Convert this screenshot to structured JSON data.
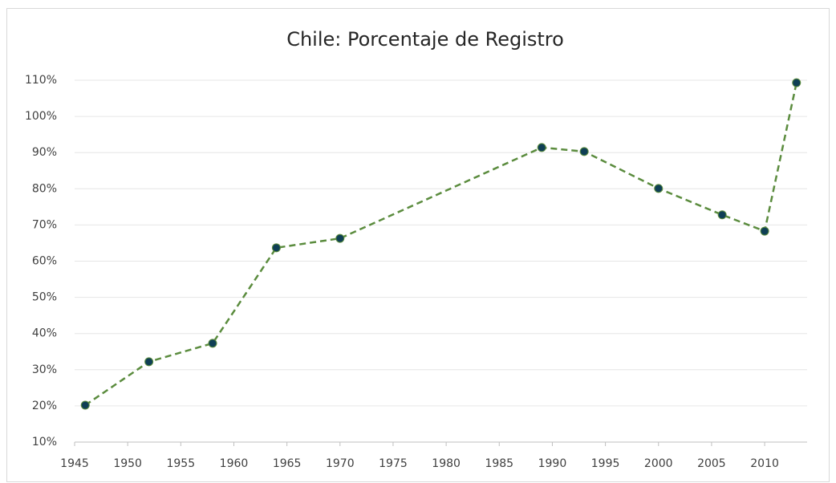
{
  "chart_data": {
    "type": "line",
    "title": "Chile: Porcentaje de Registro",
    "x": [
      1946,
      1952,
      1958,
      1964,
      1970,
      1989,
      1993,
      2000,
      2006,
      2010,
      2013
    ],
    "series": [
      {
        "color": "#5b8c3e",
        "marker_color": "#0f3f55",
        "values": [
          20.2,
          32.2,
          37.3,
          63.7,
          66.3,
          91.4,
          90.3,
          80.1,
          72.8,
          68.3,
          109.3
        ]
      }
    ],
    "xlim": [
      1945,
      2014
    ],
    "xticks": [
      1945,
      1950,
      1955,
      1960,
      1965,
      1970,
      1975,
      1980,
      1985,
      1990,
      1995,
      2000,
      2005,
      2010
    ],
    "ylim": [
      10,
      110
    ],
    "yticks": [
      {
        "value": 10,
        "label": "10%"
      },
      {
        "value": 20,
        "label": "20%"
      },
      {
        "value": 30,
        "label": "30%"
      },
      {
        "value": 40,
        "label": "40%"
      },
      {
        "value": 50,
        "label": "50%"
      },
      {
        "value": 60,
        "label": "60%"
      },
      {
        "value": 70,
        "label": "70%"
      },
      {
        "value": 80,
        "label": "80%"
      },
      {
        "value": 90,
        "label": "90%"
      },
      {
        "value": 100,
        "label": "100%"
      },
      {
        "value": 110,
        "label": "110%"
      }
    ],
    "grid": true,
    "dashed": true
  }
}
